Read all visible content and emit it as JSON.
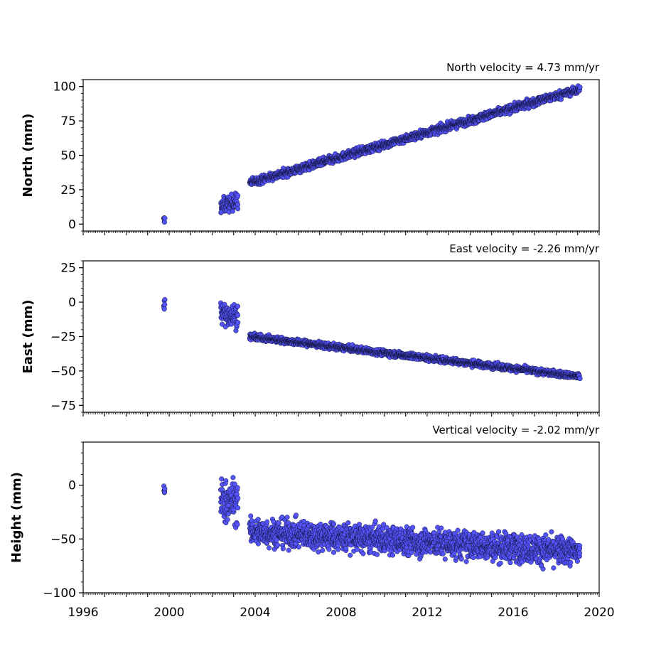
{
  "chart_data": [
    {
      "type": "scatter",
      "title": "North velocity = 4.73 mm/yr",
      "ylabel": "North (mm)",
      "ylim": [
        -5,
        105
      ],
      "yticks": [
        0,
        25,
        50,
        75,
        100
      ],
      "ytick_labels": [
        "0",
        "25",
        "50",
        "75",
        "100"
      ],
      "xlim": [
        1996,
        2020
      ],
      "series": [
        {
          "marker_color": "#5555ff",
          "segments": [
            {
              "x_start": 1999.75,
              "x_end": 1999.8,
              "y_start": 2,
              "y_end": 2,
              "scatter": 3
            },
            {
              "x_start": 2002.4,
              "x_end": 2003.2,
              "y_start": 13,
              "y_end": 17,
              "scatter": 4
            },
            {
              "x_start": 2003.75,
              "x_end": 2019.1,
              "y_start": 30,
              "y_end": 98,
              "scatter": 2
            }
          ]
        }
      ]
    },
    {
      "type": "scatter",
      "title": "East velocity = -2.26 mm/yr",
      "ylabel": "East (mm)",
      "ylim": [
        -80,
        30
      ],
      "yticks": [
        -75,
        -50,
        -25,
        0,
        25
      ],
      "ytick_labels": [
        "−75",
        "−50",
        "−25",
        "0",
        "25"
      ],
      "xlim": [
        1996,
        2020
      ],
      "series": [
        {
          "marker_color": "#5555ff",
          "segments": [
            {
              "x_start": 1999.75,
              "x_end": 1999.8,
              "y_start": -1,
              "y_end": -1,
              "scatter": 3
            },
            {
              "x_start": 2002.4,
              "x_end": 2003.2,
              "y_start": -8,
              "y_end": -10,
              "scatter": 6
            },
            {
              "x_start": 2003.75,
              "x_end": 2019.1,
              "y_start": -25,
              "y_end": -54,
              "scatter": 1.5
            }
          ]
        }
      ]
    },
    {
      "type": "scatter",
      "title": "Vertical velocity = -2.02 mm/yr",
      "ylabel": "Height (mm)",
      "ylim": [
        -100,
        40
      ],
      "yticks": [
        -100,
        -50,
        0
      ],
      "ytick_labels": [
        "−100",
        "−50",
        "0"
      ],
      "xlim": [
        1996,
        2020
      ],
      "xticks": [
        1996,
        2000,
        2004,
        2008,
        2012,
        2016,
        2020
      ],
      "xtick_labels": [
        "1996",
        "2000",
        "2004",
        "2008",
        "2012",
        "2016",
        "2020"
      ],
      "series": [
        {
          "marker_color": "#5555ff",
          "segments": [
            {
              "x_start": 1999.75,
              "x_end": 1999.8,
              "y_start": -5,
              "y_end": -5,
              "scatter": 6
            },
            {
              "x_start": 2002.4,
              "x_end": 2003.2,
              "y_start": -15,
              "y_end": -15,
              "scatter": 14
            },
            {
              "x_start": 2003.75,
              "x_end": 2019.1,
              "y_start": -43,
              "y_end": -62,
              "scatter": 9
            }
          ]
        }
      ]
    }
  ]
}
